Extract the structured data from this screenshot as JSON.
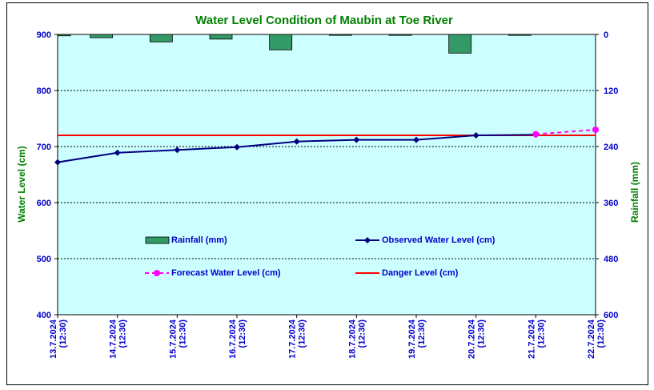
{
  "chart_data": {
    "type": "bar+line",
    "title": "Water Level Condition of  Maubin at Toe River",
    "ylabel_left": "Water Level (cm)",
    "ylabel_right": "Rainfall (mm)",
    "ylim_left": [
      400,
      900
    ],
    "yticks_left": [
      400,
      500,
      600,
      700,
      800,
      900
    ],
    "ylim_right": [
      600,
      0
    ],
    "yticks_right": [
      0,
      120,
      240,
      360,
      480,
      600
    ],
    "categories": [
      "13.7.2024 (12:30)",
      "14.7.2024 (12:30)",
      "15.7.2024 (12:30)",
      "16.7.2024 (12:30)",
      "17.7.2024 (12:30)",
      "18.7.2024 (12:30)",
      "19.7.2024 (12:30)",
      "20.7.2024 (12:30)",
      "21.7.2024 (12:30)",
      "22.7.2024 (12:30)"
    ],
    "rainfall": [
      3,
      7,
      16,
      10,
      33,
      2,
      2,
      40,
      2,
      null
    ],
    "observed": [
      672,
      689,
      694,
      699,
      709,
      712,
      712,
      720,
      721,
      null
    ],
    "forecast": [
      null,
      null,
      null,
      null,
      null,
      null,
      null,
      null,
      722,
      730
    ],
    "danger_level": 720,
    "series": [
      {
        "name": "Rainfall (mm)",
        "color": "#339966",
        "kind": "bar"
      },
      {
        "name": "Observed Water Level (cm)",
        "color": "#000080",
        "kind": "line"
      },
      {
        "name": "Forecast Water Level (cm)",
        "color": "#ff00ff",
        "kind": "dashed-line"
      },
      {
        "name": "Danger Level (cm)",
        "color": "#ff0000",
        "kind": "line"
      }
    ],
    "plot_background": "#ccffff",
    "grid": true,
    "legend_position": "inside-center"
  }
}
